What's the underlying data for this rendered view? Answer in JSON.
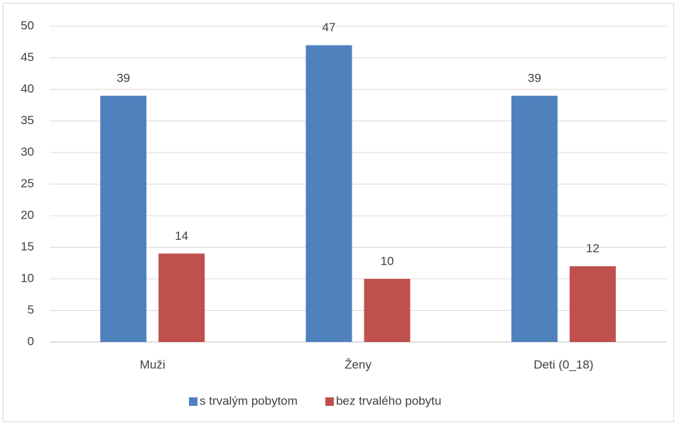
{
  "chart_data": {
    "type": "bar",
    "categories": [
      "Muži",
      "Ženy",
      "Deti (0_18)"
    ],
    "series": [
      {
        "name": "s trvalým pobytom",
        "color": "#4f81bd",
        "values": [
          39,
          47,
          39
        ]
      },
      {
        "name": "bez trvalého pobytu",
        "color": "#c0504d",
        "values": [
          14,
          10,
          12
        ]
      }
    ],
    "ylim": [
      0,
      50
    ],
    "yticks": [
      0,
      5,
      10,
      15,
      20,
      25,
      30,
      35,
      40,
      45,
      50
    ],
    "grid": true,
    "legend": "bottom"
  }
}
